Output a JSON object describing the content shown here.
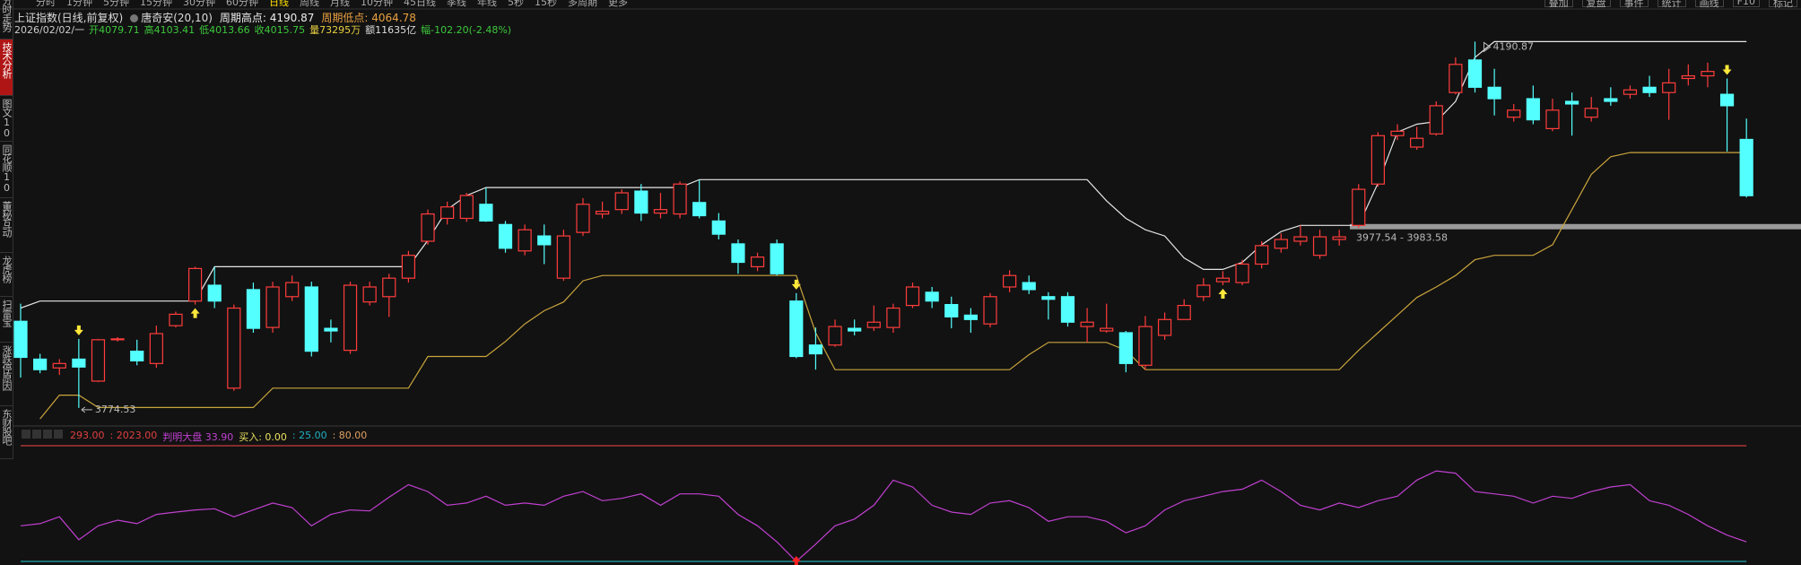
{
  "toolbar": {
    "periods": [
      "分时",
      "1分钟",
      "5分钟",
      "15分钟",
      "30分钟",
      "60分钟",
      "日线",
      "周线",
      "月线",
      "10分钟",
      "45日线",
      "季线",
      "年线",
      "5秒",
      "15秒",
      "多周期",
      "更多"
    ],
    "active": "日线",
    "tools": [
      "叠加",
      "复盘",
      "事件",
      "统计",
      "画线",
      "F10",
      "标记"
    ]
  },
  "sidebar": {
    "tabs": [
      "分时走势",
      "技术分析",
      "图文10",
      "同花顺10",
      "董秘互动",
      "龙虎榜",
      "扫雷宝",
      "涨跌停原因",
      "东财股吧"
    ],
    "active": "技术分析"
  },
  "chart_data": [
    {
      "type": "candlestick",
      "title": "上证指数(日线,前复权)",
      "indicator_name": "唐奇安(20,10)",
      "date": "2026/02/02/一",
      "open": [
        3873,
        3830,
        3820,
        3830,
        3805,
        3852,
        3839,
        3825,
        3868,
        3896,
        3914,
        3797,
        3909,
        3866,
        3901,
        3912,
        3865,
        3840,
        3895,
        3901,
        3922,
        3964,
        3990,
        3990,
        4006,
        3983,
        3953,
        3970,
        3922,
        3974,
        3995,
        4000,
        4021,
        3996,
        3995,
        4008,
        3987,
        3961,
        3935,
        3961,
        3896,
        3846,
        3846,
        3865,
        3866,
        3866,
        3891,
        3906,
        3892,
        3880,
        3870,
        3912,
        3917,
        3901,
        3901,
        3867,
        3862,
        3860,
        3823,
        3857,
        3875,
        3901,
        3918,
        3917,
        3938,
        3956,
        3964,
        3948,
        3966,
        3982,
        4029,
        4084,
        4071,
        4086,
        4133,
        4170,
        4139,
        4105,
        4126,
        4092,
        4123,
        4105,
        4126,
        4131,
        4139,
        4133,
        4149,
        4152,
        4131,
        4079.71
      ],
      "high": [
        3893,
        3836,
        3830,
        3853,
        3853,
        3855,
        3852,
        3868,
        3884,
        3935,
        3935,
        3892,
        3917,
        3918,
        3925,
        3918,
        3875,
        3918,
        3918,
        3927,
        3953,
        4000,
        4009,
        4019,
        4025,
        3987,
        3983,
        3983,
        3977,
        4013,
        4009,
        4023,
        4029,
        4019,
        4032,
        4034,
        3996,
        3966,
        3951,
        3966,
        3905,
        3866,
        3875,
        3875,
        3891,
        3893,
        3917,
        3912,
        3901,
        3888,
        3905,
        3931,
        3925,
        3906,
        3906,
        3888,
        3893,
        3862,
        3879,
        3883,
        3898,
        3922,
        3930,
        3943,
        3964,
        3973,
        3982,
        3977,
        3977,
        4029,
        4088,
        4097,
        4094,
        4123,
        4173,
        4190.87,
        4160,
        4120,
        4141,
        4126,
        4133,
        4128,
        4139,
        4141,
        4152,
        4160,
        4165,
        4167,
        4149,
        4103.41
      ],
      "low": [
        3809,
        3814,
        3812,
        3774.53,
        3804,
        3850,
        3823,
        3820,
        3866,
        3892,
        3888,
        3794,
        3860,
        3860,
        3896,
        3833,
        3849,
        3836,
        3891,
        3878,
        3917,
        3960,
        3983,
        3986,
        3986,
        3951,
        3948,
        3938,
        3919,
        3970,
        3990,
        3995,
        3987,
        3990,
        3990,
        3990,
        3966,
        3927,
        3930,
        3925,
        3831,
        3818,
        3844,
        3857,
        3862,
        3860,
        3888,
        3888,
        3865,
        3860,
        3866,
        3906,
        3904,
        3875,
        3867,
        3849,
        3860,
        3815,
        3818,
        3852,
        3875,
        3896,
        3914,
        3914,
        3933,
        3951,
        3959,
        3944,
        3959,
        3979,
        4026,
        4079,
        4068,
        4084,
        4131,
        4133,
        4107,
        4100,
        4097,
        4089,
        4084,
        4100,
        4118,
        4126,
        4128,
        4102,
        4141,
        4139,
        4066,
        4013.66
      ],
      "close": [
        3832,
        3818,
        3825,
        3821,
        3852,
        3853,
        3828,
        3859,
        3881,
        3933,
        3896,
        3888,
        3865,
        3912,
        3917,
        3839,
        3862,
        3914,
        3912,
        3922,
        3948,
        3995,
        4003,
        4016,
        3987,
        3956,
        3977,
        3960,
        3970,
        4006,
        3998,
        4019,
        3996,
        4000,
        4029,
        3993,
        3972,
        3940,
        3946,
        3927,
        3833,
        3836,
        3867,
        3862,
        3872,
        3888,
        3912,
        3896,
        3878,
        3875,
        3901,
        3925,
        3909,
        3898,
        3872,
        3872,
        3865,
        3825,
        3867,
        3875,
        3891,
        3914,
        3922,
        3938,
        3959,
        3966,
        3969,
        3969,
        3969,
        4023,
        4084,
        4089,
        4081,
        4118,
        4165,
        4139,
        4126,
        4113,
        4102,
        4113,
        4120,
        4115,
        4123,
        4136,
        4133,
        4144,
        4152,
        4157,
        4118,
        4015.75
      ],
      "up_color": "#ff3c3c",
      "down_color": "#54ffff",
      "channel": {
        "upper": [
          3888,
          3896,
          3896,
          3896,
          3896,
          3896,
          3896,
          3896,
          3896,
          3896,
          3935,
          3935,
          3935,
          3935,
          3935,
          3935,
          3935,
          3935,
          3935,
          3935,
          3935,
          3965,
          4000,
          4016,
          4025,
          4025,
          4025,
          4025,
          4025,
          4025,
          4025,
          4025,
          4025,
          4025,
          4025,
          4034,
          4034,
          4034,
          4034,
          4034,
          4034,
          4034,
          4034,
          4034,
          4034,
          4034,
          4034,
          4034,
          4034,
          4034,
          4034,
          4034,
          4034,
          4034,
          4034,
          4034,
          4010,
          3990,
          3977,
          3970,
          3945,
          3932,
          3932,
          3940,
          3960,
          3975,
          3982,
          3982,
          3982,
          3982,
          4030,
          4088,
          4097,
          4100,
          4123,
          4173,
          4190.87,
          4190.87,
          4190.87,
          4190.87,
          4190.87,
          4190.87,
          4190.87,
          4190.87,
          4190.87,
          4190.87,
          4190.87,
          4190.87,
          4190.87,
          4190.87
        ],
        "lower": [
          null,
          3762,
          3789,
          3789,
          3775,
          3775,
          3775,
          3775,
          3775,
          3775,
          3775,
          3775,
          3775,
          3797,
          3797,
          3797,
          3797,
          3797,
          3797,
          3797,
          3797,
          3833,
          3833,
          3833,
          3833,
          3850,
          3870,
          3885,
          3895,
          3919,
          3925,
          3925,
          3925,
          3925,
          3925,
          3925,
          3925,
          3925,
          3925,
          3925,
          3925,
          3860,
          3818,
          3818,
          3818,
          3818,
          3818,
          3818,
          3818,
          3818,
          3818,
          3818,
          3835,
          3849,
          3849,
          3849,
          3849,
          3840,
          3818,
          3818,
          3818,
          3818,
          3818,
          3818,
          3818,
          3818,
          3818,
          3818,
          3818,
          3840,
          3860,
          3880,
          3900,
          3912,
          3925,
          3943,
          3948,
          3948,
          3948,
          3960,
          4000,
          4040,
          4060,
          4064.78,
          4064.78,
          4064.78,
          4064.78,
          4064.78,
          4064.78,
          4064.78
        ],
        "upper_color": "#e6e6e6",
        "lower_color": "#c9a43c"
      },
      "period_high_label": "周期高点:",
      "period_low_label": "周期低点:",
      "info_labels": {
        "open": "开",
        "high": "高",
        "low": "低",
        "close": "收"
      },
      "volume_label": "量73295万",
      "amount_label": "额11635亿",
      "change_label": "幅-102.20(-2.48%)",
      "zone": {
        "values": [
          3977.54,
          3983.58
        ],
        "label": "3977.54 - 3983.58",
        "color": "#9a9a9a"
      },
      "signals": {
        "sell": [
          3,
          40,
          88
        ],
        "buy": [
          9,
          62
        ],
        "color": "#ffe83a"
      },
      "ylim": [
        3755,
        4228
      ]
    },
    {
      "type": "line",
      "name": "判明大盘",
      "color": "#c040d0",
      "ylim": [
        0,
        80
      ],
      "values": [
        24.6,
        26.1,
        30.9,
        15.0,
        24.6,
        28.5,
        26.1,
        32.5,
        34.1,
        35.6,
        36.4,
        30.9,
        35.6,
        40.4,
        37.2,
        24.6,
        32.5,
        35.6,
        34.9,
        44.4,
        53.1,
        48.3,
        38.8,
        40.4,
        45.1,
        38.8,
        40.4,
        38.8,
        45.1,
        48.3,
        42.0,
        43.6,
        46.7,
        38.8,
        46.7,
        46.7,
        45.1,
        32.5,
        24.6,
        13.5,
        0,
        11.9,
        24.6,
        29.3,
        38.8,
        56.2,
        51.5,
        38.8,
        34.1,
        32.5,
        40.4,
        42.0,
        37.2,
        27.7,
        30.9,
        30.9,
        27.7,
        19.8,
        24.6,
        35.6,
        42.0,
        45.1,
        48.3,
        49.9,
        56.2,
        48.3,
        38.8,
        35.6,
        40.4,
        37.2,
        42.0,
        45.1,
        56.2,
        62.6,
        61.0,
        48.3,
        46.7,
        45.1,
        40.4,
        45.1,
        43.6,
        48.3,
        51.5,
        53.1,
        42.0,
        38.8,
        32.5,
        24.6,
        18.2,
        13.5
      ],
      "levels": [
        {
          "value": 80,
          "color": "#c83c3c"
        },
        {
          "value": 0,
          "color": "#20a8b0"
        }
      ],
      "legend": [
        {
          "label": "293.00",
          "color": "#e04040"
        },
        {
          "label": ": 2023.00",
          "color": "#e04040"
        },
        {
          "label": "判明大盘 33.90",
          "color": "#c040d0"
        },
        {
          "label": "买入: 0.00",
          "color": "#e8e060"
        },
        {
          "label": ": 25.00",
          "color": "#20b0c0"
        },
        {
          "label": ": 80.00",
          "color": "#e0a060"
        }
      ],
      "signals": {
        "buy": [
          40
        ],
        "color": "#ff2020"
      }
    }
  ]
}
